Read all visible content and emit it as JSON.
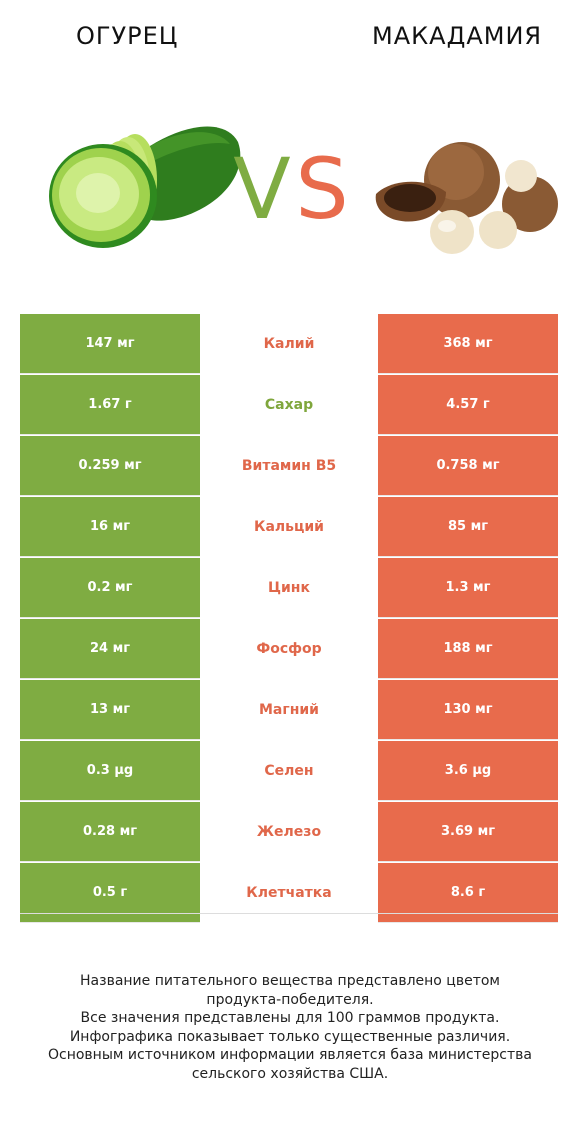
{
  "header": {
    "left_title": "ОГУРЕЦ",
    "right_title": "МАКАДАМИЯ",
    "vs_v": "V",
    "vs_s": "S"
  },
  "colors": {
    "left_accent": "#7fac42",
    "right_accent": "#e86b4c"
  },
  "rows": [
    {
      "left": "147 мг",
      "nutrient": "Калий",
      "right": "368 мг",
      "winner": "right"
    },
    {
      "left": "1.67 г",
      "nutrient": "Сахар",
      "right": "4.57 г",
      "winner": "left"
    },
    {
      "left": "0.259 мг",
      "nutrient": "Витамин B5",
      "right": "0.758 мг",
      "winner": "right"
    },
    {
      "left": "16 мг",
      "nutrient": "Кальций",
      "right": "85 мг",
      "winner": "right"
    },
    {
      "left": "0.2 мг",
      "nutrient": "Цинк",
      "right": "1.3 мг",
      "winner": "right"
    },
    {
      "left": "24 мг",
      "nutrient": "Фосфор",
      "right": "188 мг",
      "winner": "right"
    },
    {
      "left": "13 мг",
      "nutrient": "Магний",
      "right": "130 мг",
      "winner": "right"
    },
    {
      "left": "0.3 µg",
      "nutrient": "Селен",
      "right": "3.6 µg",
      "winner": "right"
    },
    {
      "left": "0.28 мг",
      "nutrient": "Железо",
      "right": "3.69 мг",
      "winner": "right"
    },
    {
      "left": "0.5 г",
      "nutrient": "Клетчатка",
      "right": "8.6 г",
      "winner": "right"
    }
  ],
  "footer": {
    "line1": "Название питательного вещества представлено цветом",
    "line2": "продукта-победителя.",
    "line3": "Все значения представлены для 100 граммов продукта.",
    "line4": "Инфографика показывает только существенные различия.",
    "line5": "Основным источником информации является база министерства",
    "line6": "сельского хозяйства США."
  }
}
